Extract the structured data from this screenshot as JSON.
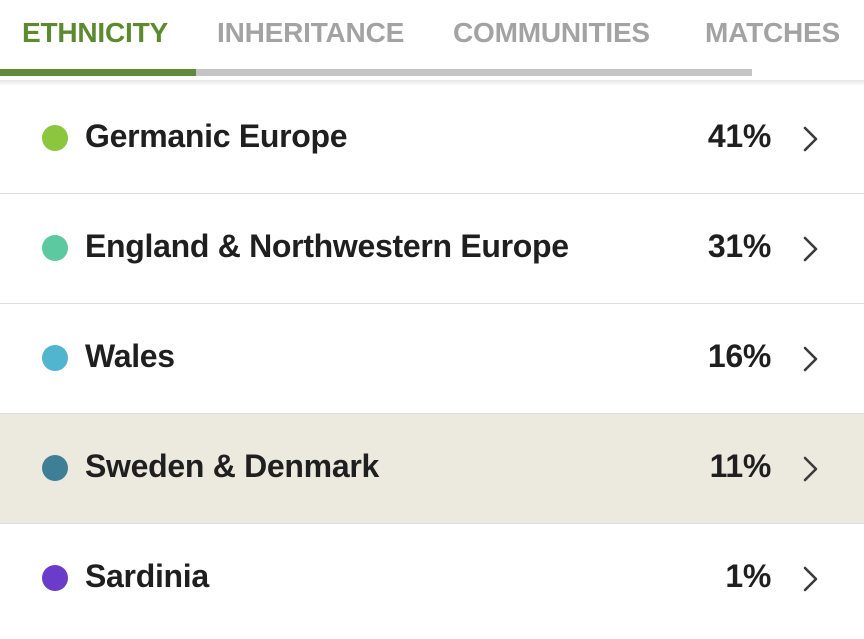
{
  "tabs": [
    {
      "label": "ETHNICITY",
      "active": true
    },
    {
      "label": "INHERITANCE",
      "active": false
    },
    {
      "label": "COMMUNITIES",
      "active": false
    },
    {
      "label": "MATCHES",
      "active": false
    }
  ],
  "colors": {
    "active_tab": "#5b8a2f",
    "inactive_tab": "#a3a3a3",
    "highlight_row": "#ece9df"
  },
  "regions": [
    {
      "name": "Germanic Europe",
      "percent": "41%",
      "color": "#8cc63e"
    },
    {
      "name": "England & Northwestern Europe",
      "percent": "31%",
      "color": "#5cc9a0"
    },
    {
      "name": "Wales",
      "percent": "16%",
      "color": "#52b5cf"
    },
    {
      "name": "Sweden & Denmark",
      "percent": "11%",
      "color": "#3f7f96"
    },
    {
      "name": "Sardinia",
      "percent": "1%",
      "color": "#6b3bc9"
    }
  ],
  "icons": {
    "row_chevron": "chevron-right-icon"
  }
}
